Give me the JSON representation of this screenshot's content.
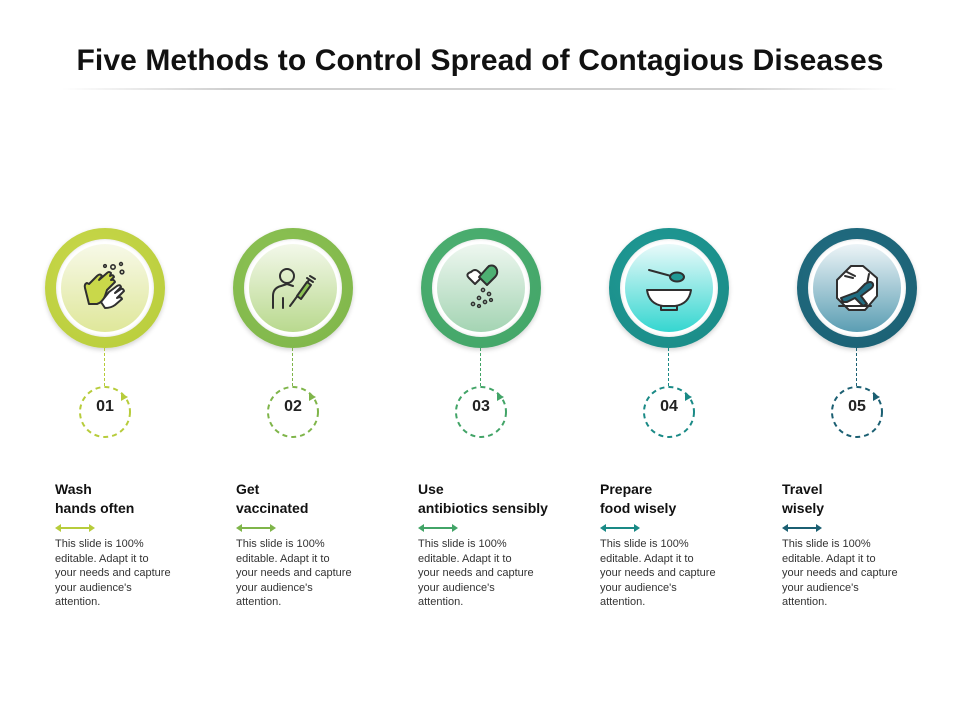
{
  "title": "Five Methods to Control Spread of Contagious Diseases",
  "steps": [
    {
      "number": "01",
      "heading": "Wash\nhands often",
      "description": "This slide is 100% editable. Adapt it to your needs and capture your audience's attention.",
      "icon": "hand-washing-icon",
      "color": "#b7cc3b",
      "ring_light": "#c9d84a",
      "core_top": "#f7f9e8",
      "core_bottom": "#dfe79a"
    },
    {
      "number": "02",
      "heading": "Get\nvaccinated",
      "description": "This slide is 100% editable. Adapt it to your needs and capture your audience's attention.",
      "icon": "vaccine-syringe-icon",
      "color": "#7fb54a",
      "ring_light": "#8cc253",
      "core_top": "#f3f8ea",
      "core_bottom": "#b9d98e"
    },
    {
      "number": "03",
      "heading": "Use\nantibiotics sensibly",
      "description": "This slide is 100% editable. Adapt it to your needs and capture your audience's attention.",
      "icon": "pill-capsule-icon",
      "color": "#42a467",
      "ring_light": "#4db072",
      "core_top": "#eef7f0",
      "core_bottom": "#a4d4b3"
    },
    {
      "number": "04",
      "heading": "Prepare\nfood wisely",
      "description": "This slide is 100% editable. Adapt it to your needs and capture your audience's attention.",
      "icon": "food-bowl-icon",
      "color": "#1a8a86",
      "ring_light": "#1f9a95",
      "core_top": "#e9fafa",
      "core_bottom": "#35d6d0"
    },
    {
      "number": "05",
      "heading": "Travel\nwisely",
      "description": "This slide is 100% editable. Adapt it to your needs and capture your audience's attention.",
      "icon": "travel-plane-icon",
      "color": "#1b5f72",
      "ring_light": "#216d82",
      "core_top": "#edf4f7",
      "core_bottom": "#5b9eb3"
    }
  ]
}
